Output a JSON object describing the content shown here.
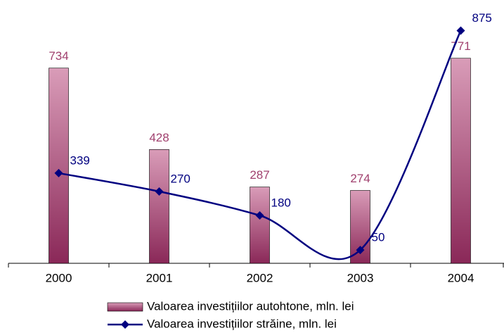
{
  "chart_data": {
    "type": "bar",
    "categories": [
      "2000",
      "2001",
      "2002",
      "2003",
      "2004"
    ],
    "series": [
      {
        "name": "Valoarea investițiilor autohtone, mln. lei",
        "type": "bar",
        "color": "#a0406e",
        "values": [
          734,
          428,
          287,
          274,
          771
        ]
      },
      {
        "name": "Valoarea investițiilor străine, mln. lei",
        "type": "line",
        "color": "#000080",
        "values": [
          339,
          270,
          180,
          50,
          875
        ]
      }
    ],
    "ylim": [
      0,
      900
    ],
    "grid": false,
    "legend": "bottom"
  }
}
